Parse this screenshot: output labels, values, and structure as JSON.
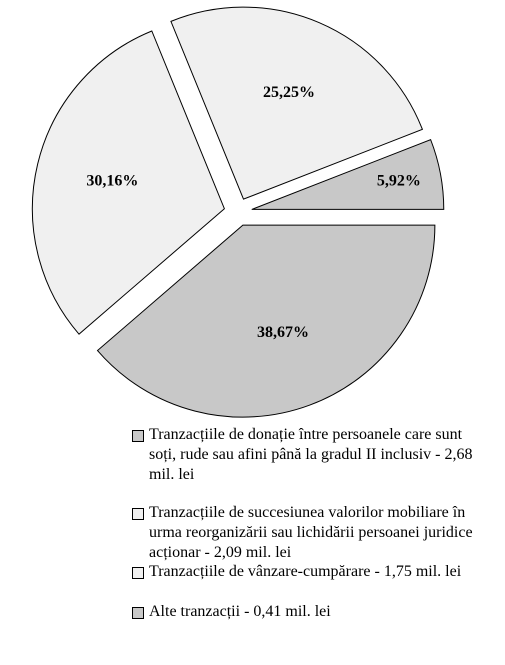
{
  "chart_data": {
    "type": "pie",
    "categories": [
      "Tranzacțiile de donație între persoanele care sunt soți, rude sau afini până la gradul II inclusiv - 2,68 mil. lei",
      "Tranzacțiile de succesiunea valorilor mobiliare în urma reorganizării sau lichidării persoanei juridice acționar - 2,09 mil. lei",
      "Tranzacțiile de vânzare-cumpărare - 1,75 mil. lei",
      "Alte tranzacții - 0,41 mil. lei"
    ],
    "values": [
      38.67,
      30.16,
      25.25,
      5.92
    ],
    "value_labels": [
      "38,67%",
      "30,16%",
      "25,25%",
      "5,92%"
    ],
    "colors": [
      "#c8c8c8",
      "#f0f0f0",
      "#f0f0f0",
      "#c8c8c8"
    ]
  }
}
